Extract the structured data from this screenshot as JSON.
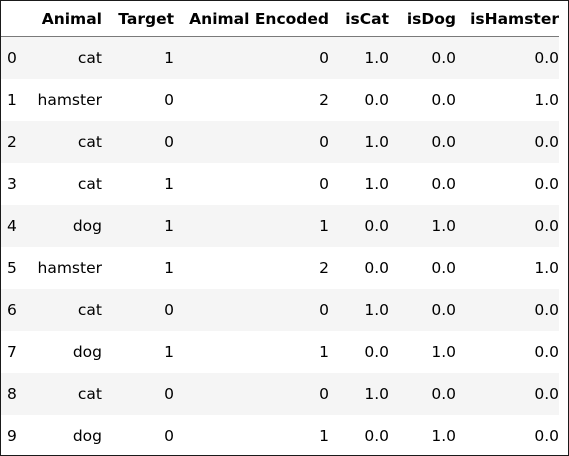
{
  "table": {
    "columns": [
      "",
      "Animal",
      "Target",
      "Animal Encoded",
      "isCat",
      "isDog",
      "isHamster"
    ],
    "rows": [
      {
        "index": "0",
        "animal": "cat",
        "target": "1",
        "encoded": "0",
        "is_cat": "1.0",
        "is_dog": "0.0",
        "is_hamster": "0.0"
      },
      {
        "index": "1",
        "animal": "hamster",
        "target": "0",
        "encoded": "2",
        "is_cat": "0.0",
        "is_dog": "0.0",
        "is_hamster": "1.0"
      },
      {
        "index": "2",
        "animal": "cat",
        "target": "0",
        "encoded": "0",
        "is_cat": "1.0",
        "is_dog": "0.0",
        "is_hamster": "0.0"
      },
      {
        "index": "3",
        "animal": "cat",
        "target": "1",
        "encoded": "0",
        "is_cat": "1.0",
        "is_dog": "0.0",
        "is_hamster": "0.0"
      },
      {
        "index": "4",
        "animal": "dog",
        "target": "1",
        "encoded": "1",
        "is_cat": "0.0",
        "is_dog": "1.0",
        "is_hamster": "0.0"
      },
      {
        "index": "5",
        "animal": "hamster",
        "target": "1",
        "encoded": "2",
        "is_cat": "0.0",
        "is_dog": "0.0",
        "is_hamster": "1.0"
      },
      {
        "index": "6",
        "animal": "cat",
        "target": "0",
        "encoded": "0",
        "is_cat": "1.0",
        "is_dog": "0.0",
        "is_hamster": "0.0"
      },
      {
        "index": "7",
        "animal": "dog",
        "target": "1",
        "encoded": "1",
        "is_cat": "0.0",
        "is_dog": "1.0",
        "is_hamster": "0.0"
      },
      {
        "index": "8",
        "animal": "cat",
        "target": "0",
        "encoded": "0",
        "is_cat": "1.0",
        "is_dog": "0.0",
        "is_hamster": "0.0"
      },
      {
        "index": "9",
        "animal": "dog",
        "target": "0",
        "encoded": "1",
        "is_cat": "0.0",
        "is_dog": "1.0",
        "is_hamster": "0.0"
      }
    ]
  }
}
